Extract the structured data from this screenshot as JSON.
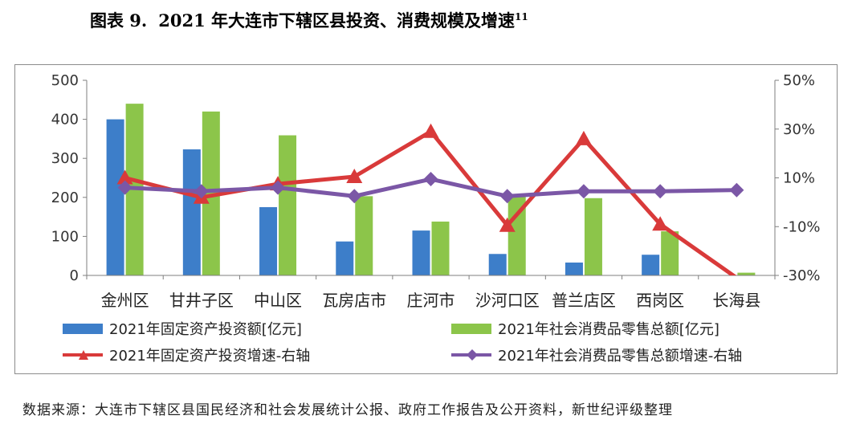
{
  "title": {
    "label": "图表 9.",
    "text": "2021 年大连市下辖区县投资、消费规模及增速",
    "footnote": "11"
  },
  "source": "数据来源：大连市下辖区县国民经济和社会发展统计公报、政府工作报告及公开资料，新世纪评级整理",
  "colors": {
    "fixed_investment": "#3d7ec9",
    "retail_sales": "#8cc54a",
    "fixed_investment_growth": "#d93a3a",
    "retail_sales_growth": "#7b57a6"
  },
  "chart_data": {
    "type": "bar",
    "combo": "bar+line",
    "categories": [
      "金州区",
      "甘井子区",
      "中山区",
      "瓦房店市",
      "庄河市",
      "沙河口区",
      "普兰店区",
      "西岗区",
      "长海县"
    ],
    "left_axis": {
      "ylim": [
        0,
        500
      ],
      "ticks": [
        "0",
        "100",
        "200",
        "300",
        "400",
        "500"
      ]
    },
    "right_axis": {
      "ylim": [
        -30,
        50
      ],
      "ticks": [
        "-30%",
        "-10%",
        "10%",
        "30%",
        "50%"
      ]
    },
    "grid": false,
    "legend_position": "bottom",
    "series": [
      {
        "name": "2021年固定资产投资额[亿元]",
        "type": "bar",
        "axis": "left",
        "color_key": "fixed_investment",
        "values": [
          400,
          323,
          175,
          87,
          115,
          55,
          33,
          53,
          null
        ]
      },
      {
        "name": "2021年社会消费品零售总额[亿元]",
        "type": "bar",
        "axis": "left",
        "color_key": "retail_sales",
        "values": [
          440,
          420,
          359,
          203,
          138,
          203,
          198,
          113,
          7
        ]
      },
      {
        "name": "2021年固定资产投资增速-右轴",
        "type": "line",
        "axis": "right",
        "marker": "triangle",
        "color_key": "fixed_investment_growth",
        "values": [
          10,
          2,
          7.5,
          10.5,
          29,
          -9.5,
          26,
          -9,
          -31
        ]
      },
      {
        "name": "2021年社会消费品零售总额增速-右轴",
        "type": "line",
        "axis": "right",
        "marker": "diamond",
        "color_key": "retail_sales_growth",
        "values": [
          6,
          4.5,
          6,
          2.5,
          9.5,
          2.5,
          4.5,
          4.5,
          5
        ]
      }
    ]
  }
}
